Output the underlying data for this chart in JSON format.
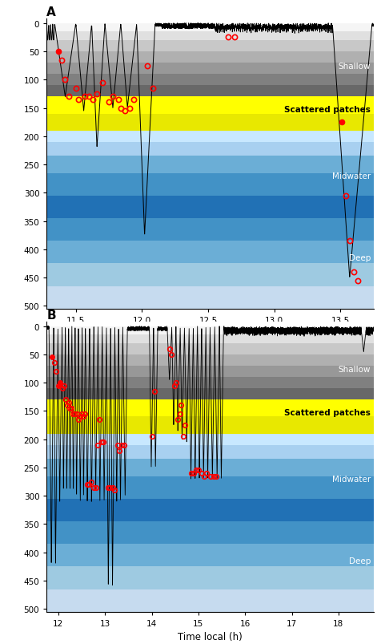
{
  "panel_A": {
    "title": "A",
    "xlim": [
      11.28,
      13.75
    ],
    "ylim": [
      505,
      -8
    ],
    "xticks": [
      11.5,
      12.0,
      12.5,
      13.0,
      13.5
    ],
    "yticks": [
      0,
      50,
      100,
      150,
      200,
      250,
      300,
      350,
      400,
      450,
      500
    ]
  },
  "panel_B": {
    "title": "B",
    "xlim": [
      11.75,
      18.75
    ],
    "ylim": [
      505,
      -8
    ],
    "xticks": [
      12,
      13,
      14,
      15,
      16,
      17,
      18
    ],
    "yticks": [
      0,
      50,
      100,
      150,
      200,
      250,
      300,
      350,
      400,
      450,
      500
    ],
    "xlabel": "Time local (h)"
  },
  "bg_layers": [
    {
      "ymin": 0,
      "ymax": 15,
      "color": "#f5f5f5"
    },
    {
      "ymin": 15,
      "ymax": 30,
      "color": "#e0e0e0"
    },
    {
      "ymin": 30,
      "ymax": 50,
      "color": "#c8c8c8"
    },
    {
      "ymin": 50,
      "ymax": 70,
      "color": "#b0b0b0"
    },
    {
      "ymin": 70,
      "ymax": 90,
      "color": "#989898"
    },
    {
      "ymin": 90,
      "ymax": 110,
      "color": "#808080"
    },
    {
      "ymin": 110,
      "ymax": 130,
      "color": "#686868"
    },
    {
      "ymin": 130,
      "ymax": 160,
      "color": "#ffff00"
    },
    {
      "ymin": 160,
      "ymax": 190,
      "color": "#e8e800"
    },
    {
      "ymin": 190,
      "ymax": 210,
      "color": "#c8e8ff"
    },
    {
      "ymin": 210,
      "ymax": 235,
      "color": "#a8d0f0"
    },
    {
      "ymin": 235,
      "ymax": 265,
      "color": "#6baed6"
    },
    {
      "ymin": 265,
      "ymax": 305,
      "color": "#4292c6"
    },
    {
      "ymin": 305,
      "ymax": 345,
      "color": "#2171b5"
    },
    {
      "ymin": 345,
      "ymax": 385,
      "color": "#4292c6"
    },
    {
      "ymin": 385,
      "ymax": 425,
      "color": "#6baed6"
    },
    {
      "ymin": 425,
      "ymax": 465,
      "color": "#9ecae1"
    },
    {
      "ymin": 465,
      "ymax": 505,
      "color": "#c6dbef"
    }
  ],
  "labels": [
    {
      "text": "Shallow",
      "y": 75,
      "color": "white",
      "bold": false
    },
    {
      "text": "Scattered patches",
      "y": 152,
      "color": "black",
      "bold": true
    },
    {
      "text": "Midwater",
      "y": 270,
      "color": "white",
      "bold": false
    },
    {
      "text": "Deep",
      "y": 415,
      "color": "white",
      "bold": false
    }
  ],
  "buzz_A_x": [
    11.37,
    11.39,
    11.42,
    11.45,
    11.5,
    11.52,
    11.57,
    11.6,
    11.63,
    11.66,
    11.7,
    11.75,
    11.78,
    11.82,
    11.84,
    11.87,
    11.91,
    11.94,
    12.04,
    12.08,
    12.65,
    12.7,
    13.51,
    13.54,
    13.57,
    13.6,
    13.63
  ],
  "buzz_A_y": [
    50,
    65,
    100,
    130,
    115,
    135,
    130,
    130,
    135,
    125,
    105,
    140,
    130,
    135,
    150,
    155,
    150,
    135,
    75,
    115,
    25,
    25,
    175,
    305,
    385,
    440,
    455
  ],
  "buzz_A_filled": [
    true,
    false,
    false,
    false,
    false,
    false,
    false,
    false,
    false,
    false,
    false,
    false,
    false,
    false,
    false,
    false,
    false,
    false,
    false,
    false,
    false,
    false,
    true,
    false,
    false,
    false,
    false
  ],
  "buzz_B_x": [
    11.87,
    11.91,
    11.95,
    12.0,
    12.04,
    12.08,
    12.12,
    12.16,
    12.19,
    12.22,
    12.25,
    12.28,
    12.31,
    12.35,
    12.39,
    12.43,
    12.47,
    12.5,
    12.54,
    12.57,
    12.62,
    12.66,
    12.71,
    12.75,
    12.8,
    12.84,
    12.88,
    12.93,
    12.97,
    13.07,
    13.1,
    13.17,
    13.2,
    13.27,
    13.3,
    13.36,
    13.4,
    14.0,
    14.06,
    14.38,
    14.42,
    14.48,
    14.52,
    14.56,
    14.6,
    14.63,
    14.67,
    14.71,
    14.85,
    14.9,
    14.95,
    15.0,
    15.07,
    15.12,
    15.17,
    15.26,
    15.32,
    15.38
  ],
  "buzz_B_y": [
    55,
    65,
    80,
    105,
    100,
    110,
    105,
    130,
    140,
    135,
    145,
    145,
    155,
    155,
    155,
    165,
    160,
    155,
    160,
    155,
    280,
    280,
    275,
    285,
    285,
    210,
    165,
    205,
    205,
    285,
    285,
    285,
    290,
    210,
    220,
    210,
    210,
    195,
    115,
    40,
    50,
    105,
    100,
    165,
    155,
    140,
    195,
    175,
    260,
    260,
    255,
    255,
    260,
    265,
    260,
    265,
    265,
    265
  ],
  "buzz_B_filled": [
    true,
    false,
    false,
    true,
    true,
    false,
    false,
    false,
    false,
    false,
    false,
    false,
    false,
    false,
    false,
    false,
    false,
    false,
    false,
    false,
    false,
    false,
    false,
    false,
    false,
    false,
    false,
    false,
    false,
    false,
    false,
    false,
    false,
    false,
    false,
    false,
    false,
    false,
    false,
    false,
    false,
    false,
    false,
    false,
    false,
    false,
    false,
    false,
    false,
    false,
    false,
    false,
    false,
    false,
    false,
    false,
    false,
    false
  ]
}
